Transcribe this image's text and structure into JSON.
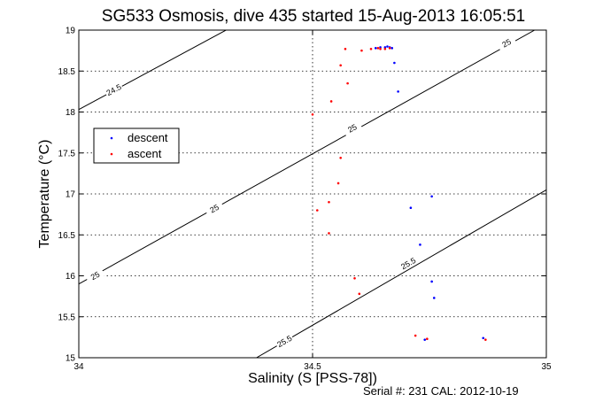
{
  "chart_data": {
    "type": "scatter",
    "title": "SG533 Osmosis, dive 435 started 15-Aug-2013 16:05:51",
    "xlabel": "Salinity (S [PSS-78])",
    "ylabel": "Temperature (°C)",
    "xlim": [
      34,
      35
    ],
    "ylim": [
      15,
      19
    ],
    "x_ticks": [
      34,
      34.5,
      35
    ],
    "x_tick_labels": [
      "34",
      "34.5",
      "35"
    ],
    "y_ticks": [
      15,
      15.5,
      16,
      16.5,
      17,
      17.5,
      18,
      18.5,
      19
    ],
    "y_tick_labels": [
      "15",
      "15.5",
      "16",
      "16.5",
      "17",
      "17.5",
      "18",
      "18.5",
      "19"
    ],
    "grid": true,
    "legend": {
      "placement": "middle-left",
      "entries": [
        {
          "label": "descent",
          "color": "#0000ff"
        },
        {
          "label": "ascent",
          "color": "#ff0000"
        }
      ]
    },
    "contours": [
      {
        "label": "24.5",
        "points": [
          [
            34,
            18.03
          ],
          [
            34.315,
            19
          ]
        ],
        "labels_at": [
          [
            34.075,
            18.27,
            "24.5"
          ]
        ]
      },
      {
        "label": "25",
        "points": [
          [
            34,
            15.9
          ],
          [
            34.975,
            19
          ]
        ],
        "labels_at": [
          [
            34.035,
            16.0,
            "25"
          ],
          [
            34.29,
            16.82,
            "25"
          ],
          [
            34.585,
            17.8,
            "25"
          ],
          [
            34.915,
            18.84,
            "25"
          ]
        ]
      },
      {
        "label": "25.5",
        "points": [
          [
            34.38,
            15
          ],
          [
            35,
            17.05
          ]
        ],
        "labels_at": [
          [
            34.44,
            15.2,
            "25.5"
          ],
          [
            34.705,
            16.15,
            "25.5"
          ]
        ]
      }
    ],
    "series": [
      {
        "name": "descent",
        "color": "#0000ff",
        "points": [
          [
            34.635,
            18.78
          ],
          [
            34.645,
            18.79
          ],
          [
            34.655,
            18.79
          ],
          [
            34.66,
            18.8
          ],
          [
            34.665,
            18.79
          ],
          [
            34.67,
            18.78
          ],
          [
            34.675,
            18.6
          ],
          [
            34.683,
            18.25
          ],
          [
            34.71,
            16.83
          ],
          [
            34.73,
            16.38
          ],
          [
            34.755,
            15.93
          ],
          [
            34.76,
            15.73
          ],
          [
            34.865,
            15.24
          ],
          [
            34.755,
            16.97
          ],
          [
            34.74,
            15.22
          ]
        ]
      },
      {
        "name": "ascent",
        "color": "#ff0000",
        "points": [
          [
            34.665,
            18.78
          ],
          [
            34.655,
            18.77
          ],
          [
            34.645,
            18.77
          ],
          [
            34.64,
            18.78
          ],
          [
            34.625,
            18.77
          ],
          [
            34.605,
            18.75
          ],
          [
            34.57,
            18.77
          ],
          [
            34.56,
            18.57
          ],
          [
            34.575,
            18.35
          ],
          [
            34.54,
            18.13
          ],
          [
            34.5,
            17.97
          ],
          [
            34.56,
            17.44
          ],
          [
            34.555,
            17.13
          ],
          [
            34.535,
            16.9
          ],
          [
            34.51,
            16.8
          ],
          [
            34.535,
            16.52
          ],
          [
            34.59,
            15.97
          ],
          [
            34.6,
            15.78
          ],
          [
            34.72,
            15.27
          ],
          [
            34.745,
            15.23
          ],
          [
            34.87,
            15.22
          ]
        ]
      }
    ]
  },
  "footer": {
    "serial": "Serial #: 231  CAL: 2012-10-19"
  }
}
